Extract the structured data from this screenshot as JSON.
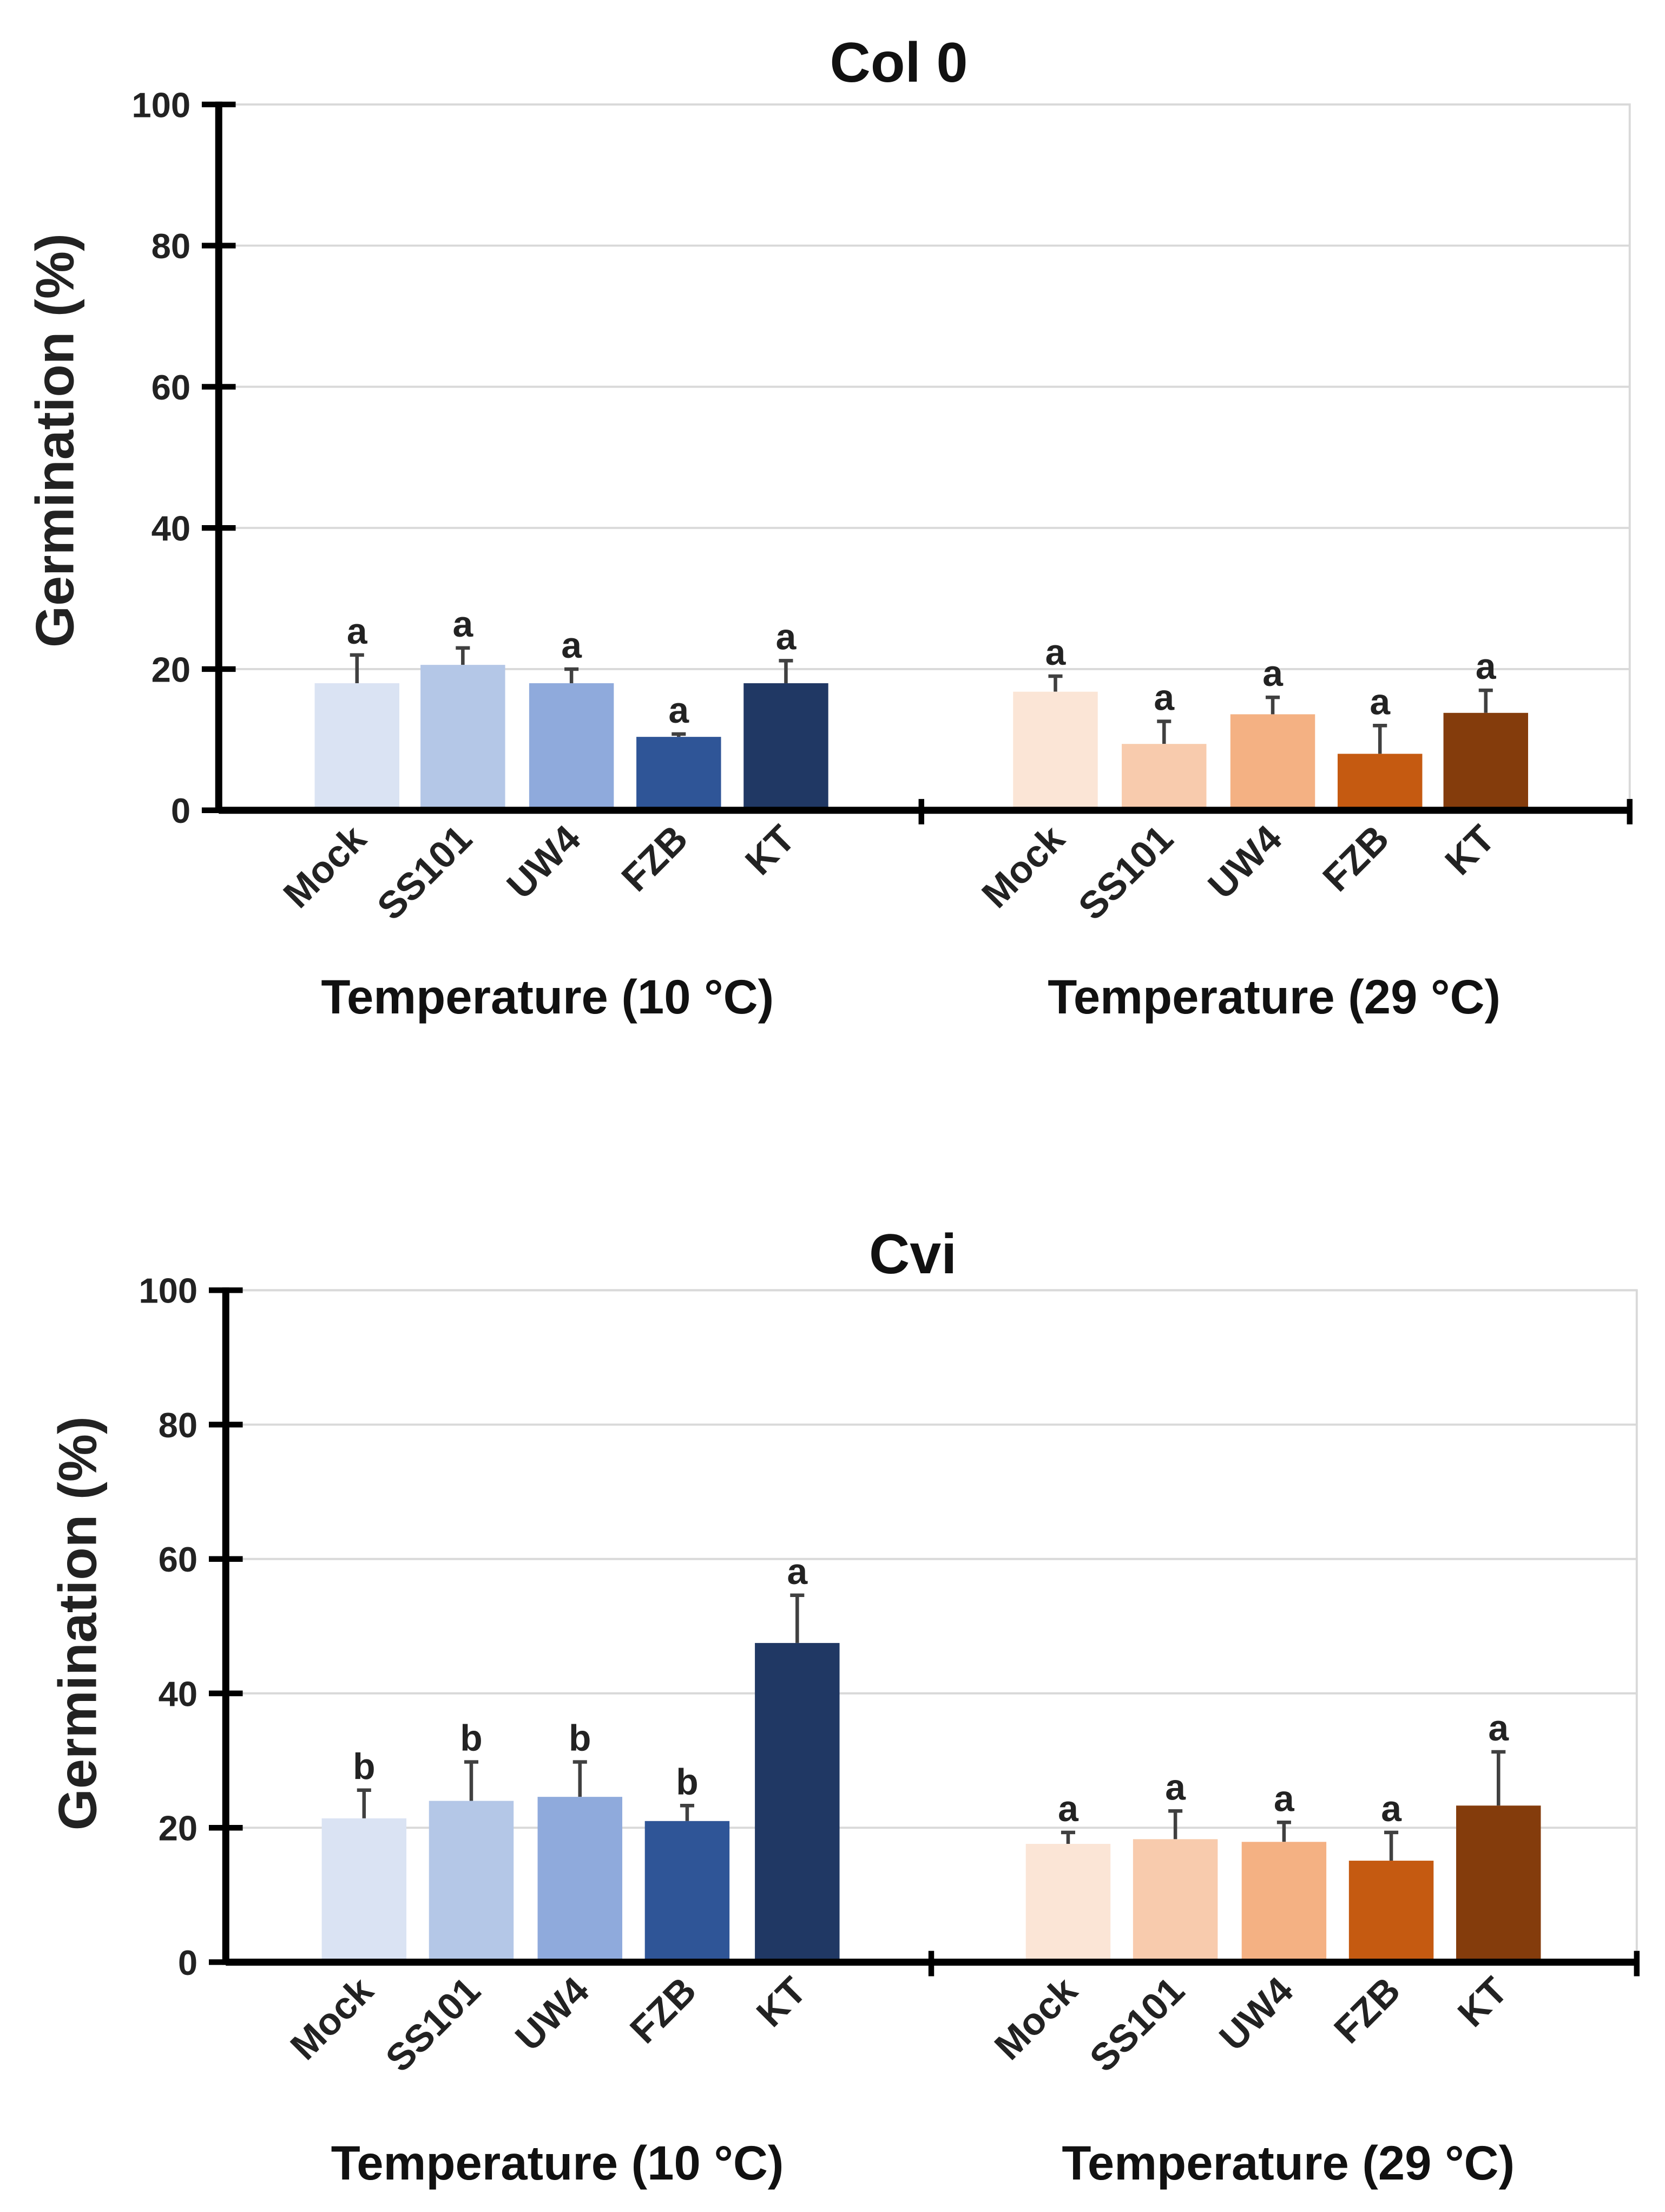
{
  "chart_data": [
    {
      "type": "bar",
      "title": "Col 0",
      "ylabel": "Germination  (%)",
      "ylim": [
        0,
        100
      ],
      "yticks": [
        0,
        20,
        40,
        60,
        80,
        100
      ],
      "grid": true,
      "groups": [
        {
          "label": "Temperature (10 °C)",
          "categories": [
            "Mock",
            "SS101",
            "UW4",
            "FZB",
            "KT"
          ],
          "values": [
            18,
            20.6,
            18,
            10.4,
            18
          ],
          "error_upper": [
            22,
            23,
            20,
            10.8,
            21.2
          ],
          "letters": [
            "a",
            "a",
            "a",
            "a",
            "a"
          ],
          "colors": [
            "#dae3f3",
            "#b4c7e7",
            "#8faadc",
            "#2f5597",
            "#203864"
          ]
        },
        {
          "label": "Temperature (29 °C)",
          "categories": [
            "Mock",
            "SS101",
            "UW4",
            "FZB",
            "KT"
          ],
          "values": [
            16.8,
            9.4,
            13.6,
            8,
            13.8
          ],
          "error_upper": [
            19,
            12.6,
            16,
            12,
            17
          ],
          "letters": [
            "a",
            "a",
            "a",
            "a",
            "a"
          ],
          "colors": [
            "#fbe5d6",
            "#f8cbad",
            "#f4b183",
            "#c55a11",
            "#843c0c"
          ]
        }
      ]
    },
    {
      "type": "bar",
      "title": "Cvi",
      "ylabel": "Germination  (%)",
      "ylim": [
        0,
        100
      ],
      "yticks": [
        0,
        20,
        40,
        60,
        80,
        100
      ],
      "grid": true,
      "groups": [
        {
          "label": "Temperature (10 °C)",
          "categories": [
            "Mock",
            "SS101",
            "UW4",
            "FZB",
            "KT"
          ],
          "values": [
            21.4,
            24,
            24.6,
            21,
            47.5
          ],
          "error_upper": [
            25.6,
            29.8,
            29.8,
            23.3,
            54.6
          ],
          "letters": [
            "b",
            "b",
            "b",
            "b",
            "a"
          ],
          "colors": [
            "#dae3f3",
            "#b4c7e7",
            "#8faadc",
            "#2f5597",
            "#203864"
          ]
        },
        {
          "label": "Temperature (29 °C)",
          "categories": [
            "Mock",
            "SS101",
            "UW4",
            "FZB",
            "KT"
          ],
          "values": [
            17.6,
            18.3,
            17.9,
            15.1,
            23.3
          ],
          "error_upper": [
            19.3,
            22.5,
            20.8,
            19.3,
            31.3
          ],
          "letters": [
            "a",
            "a",
            "a",
            "a",
            "a"
          ],
          "colors": [
            "#fbe5d6",
            "#f8cbad",
            "#f4b183",
            "#c55a11",
            "#843c0c"
          ]
        }
      ]
    }
  ]
}
